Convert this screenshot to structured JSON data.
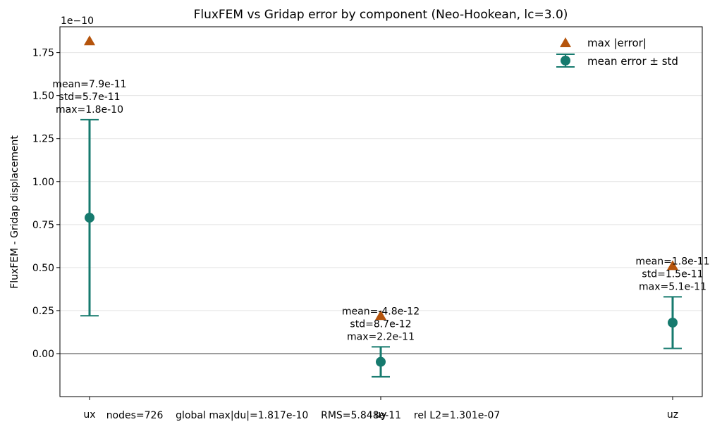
{
  "chart_data": {
    "type": "errorbar",
    "title": "FluxFEM vs Gridap error by component (Neo-Hookean, lc=3.0)",
    "xlabel": "",
    "ylabel": "FluxFEM - Gridap displacement",
    "offset_label": "1e−10",
    "scale": 1e-10,
    "ylim": [
      -0.25,
      1.9
    ],
    "yticks": [
      0.0,
      0.25,
      0.5,
      0.75,
      1.0,
      1.25,
      1.5,
      1.75
    ],
    "ytick_labels": [
      "0.00",
      "0.25",
      "0.50",
      "0.75",
      "1.00",
      "1.25",
      "1.50",
      "1.75"
    ],
    "grid": "y",
    "legend_position": "top-right",
    "categories": [
      "ux",
      "uy",
      "uz"
    ],
    "series": [
      {
        "name": "max |error|",
        "marker": "triangle",
        "color": "#b5540c",
        "values": [
          1.817,
          0.22,
          0.51
        ]
      },
      {
        "name": "mean error ± std",
        "marker": "circle",
        "color": "#167a6e",
        "values": [
          0.79,
          -0.048,
          0.18
        ],
        "errors": [
          0.57,
          0.087,
          0.15
        ]
      }
    ],
    "annotations": [
      [
        "mean=7.9e-11",
        "std=5.7e-11",
        "max=1.8e-10"
      ],
      [
        "mean=-4.8e-12",
        "std=8.7e-12",
        "max=2.2e-11"
      ],
      [
        "mean=1.8e-11",
        "std=1.5e-11",
        "max=5.1e-11"
      ]
    ],
    "footer": "nodes=726    global max|du|=1.817e-10    RMS=5.848e-11    rel L2=1.301e-07"
  }
}
